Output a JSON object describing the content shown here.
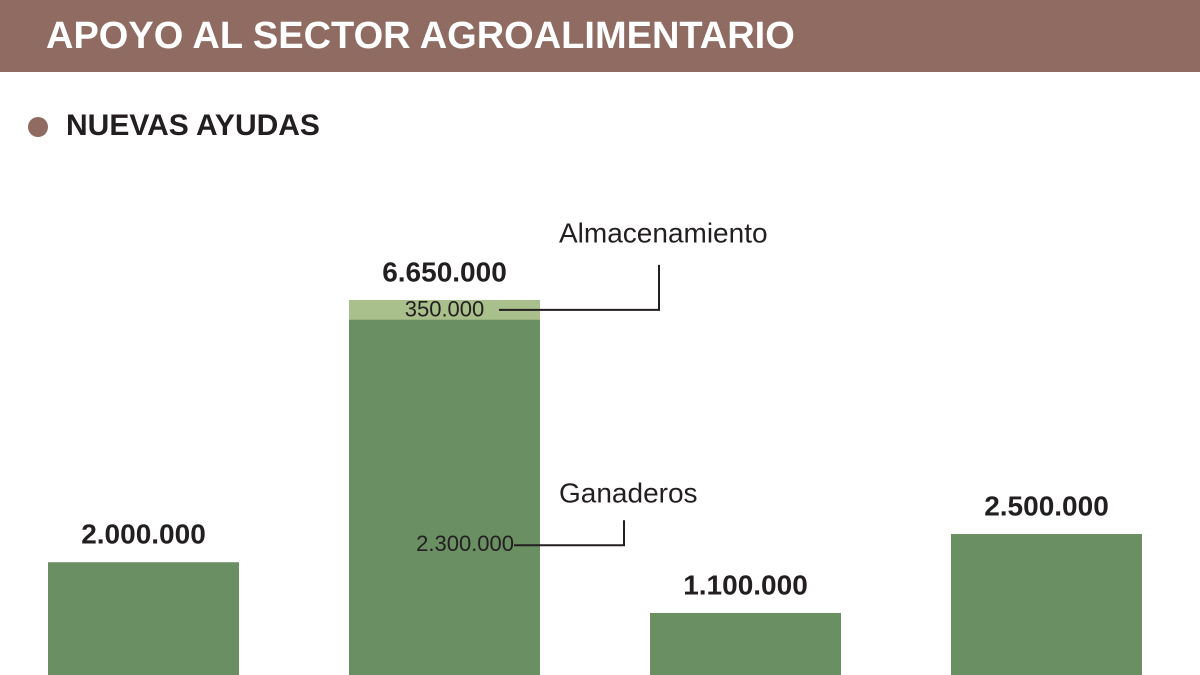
{
  "chart_data": {
    "type": "bar",
    "title": "APOYO AL SECTOR AGROALIMENTARIO",
    "subtitle": "NUEVAS AYUDAS",
    "values": [
      2000000,
      6650000,
      1100000,
      2500000
    ],
    "value_labels": [
      "2.000.000",
      "6.650.000",
      "1.100.000",
      "2.500.000"
    ],
    "color": "#6a8f62",
    "annotations": [
      {
        "text": "Almacenamiento",
        "value": 350000,
        "value_label": "350.000",
        "color": "#a9bf8c"
      },
      {
        "text": "Ganaderos",
        "value": 2300000,
        "value_label": "2.300.000"
      }
    ]
  }
}
